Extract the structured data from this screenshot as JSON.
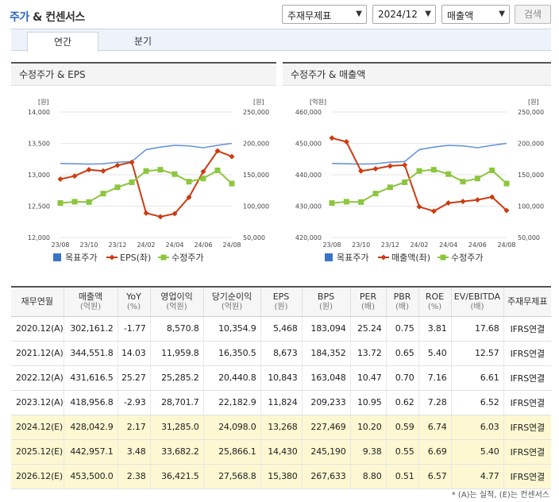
{
  "header": {
    "title_main": "주가",
    "title_rest": "& 컨센서스",
    "select_type": "주재무제표",
    "select_period": "2024/12",
    "select_item": "매출액",
    "search_label": "검색"
  },
  "tabs": [
    {
      "label": "연간"
    },
    {
      "label": "분기"
    }
  ],
  "chart_data": [
    {
      "type": "line",
      "title": "수정주가 & EPS",
      "categories": [
        "23/08",
        "23/09",
        "23/10",
        "23/11",
        "23/12",
        "24/01",
        "24/02",
        "24/03",
        "24/04",
        "24/05",
        "24/06",
        "24/07",
        "24/08"
      ],
      "x_tick_labels": [
        "23/08",
        "23/10",
        "23/12",
        "24/02",
        "24/04",
        "24/06",
        "24/08"
      ],
      "left_axis": {
        "unit": "[원]",
        "range": [
          12000,
          14000
        ],
        "ticks": [
          "14,000",
          "13,500",
          "13,000",
          "12,500",
          "12,000"
        ]
      },
      "right_axis": {
        "unit": "[원]",
        "range": [
          50000,
          250000
        ],
        "ticks": [
          "250,000",
          "200,000",
          "150,000",
          "100,000",
          "50,000"
        ]
      },
      "series": [
        {
          "name": "목표주가",
          "axis": "right",
          "color": "#6a96d8",
          "marker": "none",
          "values": [
            168000,
            167500,
            167000,
            167500,
            170000,
            171000,
            190000,
            194000,
            197000,
            196000,
            193000,
            197000,
            200000
          ]
        },
        {
          "name": "EPS(좌)",
          "axis": "left",
          "color": "#cc3b12",
          "marker": "diamond",
          "values": [
            12930,
            12980,
            13080,
            13060,
            13150,
            13200,
            12390,
            12330,
            12380,
            12640,
            13050,
            13380,
            13290
          ]
        },
        {
          "name": "수정주가",
          "axis": "right",
          "color": "#8cc63f",
          "marker": "square",
          "values": [
            105000,
            107000,
            106500,
            120000,
            130000,
            138000,
            156000,
            158000,
            151000,
            139000,
            144000,
            157000,
            136000
          ]
        }
      ]
    },
    {
      "type": "line",
      "title": "수정주가 & 매출액",
      "categories": [
        "23/08",
        "23/09",
        "23/10",
        "23/11",
        "23/12",
        "24/01",
        "24/02",
        "24/03",
        "24/04",
        "24/05",
        "24/06",
        "24/07",
        "24/08"
      ],
      "x_tick_labels": [
        "23/08",
        "23/10",
        "23/12",
        "24/02",
        "24/04",
        "24/06",
        "24/08"
      ],
      "left_axis": {
        "unit": "[억원]",
        "range": [
          420000,
          460000
        ],
        "ticks": [
          "460,000",
          "450,000",
          "440,000",
          "430,000",
          "420,000"
        ]
      },
      "right_axis": {
        "unit": "[원]",
        "range": [
          50000,
          250000
        ],
        "ticks": [
          "250,000",
          "200,000",
          "150,000",
          "100,000",
          "50,000"
        ]
      },
      "series": [
        {
          "name": "목표주가",
          "axis": "right",
          "color": "#6a96d8",
          "marker": "none",
          "values": [
            168000,
            167500,
            167000,
            167500,
            170000,
            171000,
            190000,
            194000,
            197000,
            196000,
            193000,
            197000,
            200000
          ]
        },
        {
          "name": "매출액(좌)",
          "axis": "left",
          "color": "#cc3b12",
          "marker": "diamond",
          "values": [
            451700,
            450500,
            441200,
            441900,
            442800,
            443100,
            429800,
            428400,
            431000,
            431500,
            432000,
            432900,
            428600
          ]
        },
        {
          "name": "수정주가",
          "axis": "right",
          "color": "#8cc63f",
          "marker": "square",
          "values": [
            105000,
            107000,
            106500,
            120000,
            130000,
            138000,
            156000,
            158000,
            151000,
            139000,
            144000,
            157000,
            136000
          ]
        }
      ]
    }
  ],
  "table": {
    "headers": [
      {
        "label": "재무연월",
        "unit": ""
      },
      {
        "label": "매출액",
        "unit": "(억원)"
      },
      {
        "label": "YoY",
        "unit": "(%)"
      },
      {
        "label": "영업이익",
        "unit": "(억원)"
      },
      {
        "label": "당기순이익",
        "unit": "(억원)"
      },
      {
        "label": "EPS",
        "unit": "(원)"
      },
      {
        "label": "BPS",
        "unit": "(원)"
      },
      {
        "label": "PER",
        "unit": "(배)"
      },
      {
        "label": "PBR",
        "unit": "(배)"
      },
      {
        "label": "ROE",
        "unit": "(%)"
      },
      {
        "label": "EV/EBITDA",
        "unit": "(배)"
      },
      {
        "label": "주재무제표",
        "unit": ""
      }
    ],
    "rows": [
      {
        "estimate": false,
        "cells": [
          "2020.12(A)",
          "302,161.2",
          "-1.77",
          "8,570.8",
          "10,354.9",
          "5,468",
          "183,094",
          "25.24",
          "0.75",
          "3.81",
          "17.68",
          "IFRS연결"
        ]
      },
      {
        "estimate": false,
        "cells": [
          "2021.12(A)",
          "344,551.8",
          "14.03",
          "11,959.8",
          "16,350.5",
          "8,673",
          "184,352",
          "13.72",
          "0.65",
          "5.40",
          "12.57",
          "IFRS연결"
        ]
      },
      {
        "estimate": false,
        "cells": [
          "2022.12(A)",
          "431,616.5",
          "25.27",
          "25,285.2",
          "20,440.8",
          "10,843",
          "163,048",
          "10.47",
          "0.70",
          "7.16",
          "6.61",
          "IFRS연결"
        ]
      },
      {
        "estimate": false,
        "cells": [
          "2023.12(A)",
          "418,956.8",
          "-2.93",
          "28,701.7",
          "22,182.9",
          "11,824",
          "209,233",
          "10.95",
          "0.62",
          "7.28",
          "6.52",
          "IFRS연결"
        ]
      },
      {
        "estimate": true,
        "cells": [
          "2024.12(E)",
          "428,042.9",
          "2.17",
          "31,285.0",
          "24,098.0",
          "13,268",
          "227,469",
          "10.20",
          "0.59",
          "6.74",
          "6.03",
          "IFRS연결"
        ]
      },
      {
        "estimate": true,
        "cells": [
          "2025.12(E)",
          "442,957.1",
          "3.48",
          "33,682.2",
          "25,866.1",
          "14,430",
          "245,190",
          "9.38",
          "0.55",
          "6.69",
          "5.40",
          "IFRS연결"
        ]
      },
      {
        "estimate": true,
        "cells": [
          "2026.12(E)",
          "453,500.0",
          "2.38",
          "36,421.5",
          "27,568.8",
          "15,380",
          "267,633",
          "8.80",
          "0.51",
          "6.57",
          "4.77",
          "IFRS연결"
        ]
      }
    ]
  },
  "footnote": "* (A)는 실적, (E)는 컨센서스"
}
